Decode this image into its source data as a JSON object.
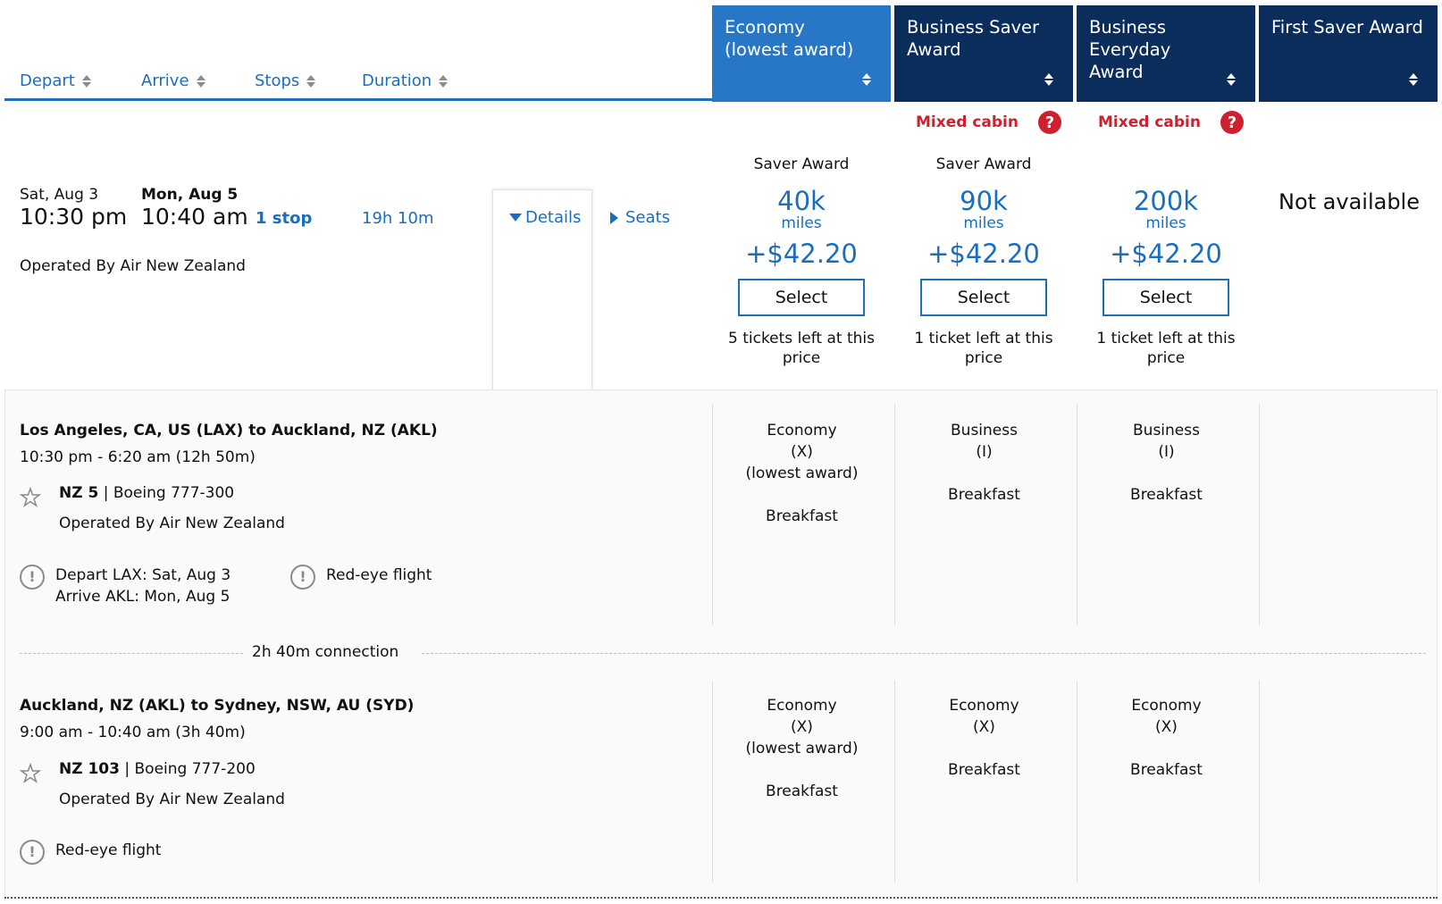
{
  "sort_header": {
    "depart": "Depart",
    "arrive": "Arrive",
    "stops": "Stops",
    "duration": "Duration"
  },
  "fare_columns": [
    {
      "label_line1": "Economy",
      "label_line2": "(lowest award)",
      "active": true
    },
    {
      "label_line1": "Business Saver",
      "label_line2": "Award",
      "active": false
    },
    {
      "label_line1": "Business Everyday",
      "label_line2": "Award",
      "active": false
    },
    {
      "label_line1": "First Saver Award",
      "label_line2": "",
      "active": false
    }
  ],
  "mixed_cabin": {
    "label": "Mixed cabin",
    "help_glyph": "?"
  },
  "flight": {
    "depart_date": "Sat, Aug 3",
    "depart_time": "10:30 pm",
    "arrive_date": "Mon, Aug 5",
    "arrive_time": "10:40 am",
    "stops": "1 stop",
    "duration": "19h 10m",
    "operated_by": "Operated By Air New Zealand",
    "details_label": "Details",
    "seats_label": "Seats"
  },
  "fares": [
    {
      "type": "Saver Award",
      "miles": "40k",
      "miles_unit": "miles",
      "price": "+$42.20",
      "button": "Select",
      "tickets": "5 tickets left at this price"
    },
    {
      "type": "Saver Award",
      "miles": "90k",
      "miles_unit": "miles",
      "price": "+$42.20",
      "button": "Select",
      "tickets": "1 ticket left at this price"
    },
    {
      "type": "",
      "miles": "200k",
      "miles_unit": "miles",
      "price": "+$42.20",
      "button": "Select",
      "tickets": "1 ticket left at this price"
    }
  ],
  "not_available": "Not available",
  "segments": [
    {
      "route": "Los Angeles, CA, US (LAX) to Auckland, NZ (AKL)",
      "times": "10:30 pm - 6:20 am (12h 50m)",
      "flight_no": "NZ 5",
      "separator": "|",
      "aircraft": "Boeing 777-300",
      "operated_by": "Operated By Air New Zealand",
      "notice_1_line1": "Depart LAX: Sat, Aug 3",
      "notice_1_line2": "Arrive AKL: Mon, Aug 5",
      "notice_2": "Red-eye flight",
      "cabins": [
        {
          "line1": "Economy",
          "line2": "(X)",
          "line3": "(lowest award)",
          "meal": "Breakfast"
        },
        {
          "line1": "Business",
          "line2": "(I)",
          "line3": "",
          "meal": "Breakfast"
        },
        {
          "line1": "Business",
          "line2": "(I)",
          "line3": "",
          "meal": "Breakfast"
        }
      ]
    },
    {
      "route": "Auckland, NZ (AKL) to Sydney, NSW, AU (SYD)",
      "times": "9:00 am - 10:40 am (3h 40m)",
      "flight_no": "NZ 103",
      "separator": "|",
      "aircraft": "Boeing 777-200",
      "operated_by": "Operated By Air New Zealand",
      "notice_1": "Red-eye flight",
      "cabins": [
        {
          "line1": "Economy",
          "line2": "(X)",
          "line3": "(lowest award)",
          "meal": "Breakfast"
        },
        {
          "line1": "Economy",
          "line2": "(X)",
          "line3": "",
          "meal": "Breakfast"
        },
        {
          "line1": "Economy",
          "line2": "(X)",
          "line3": "",
          "meal": "Breakfast"
        }
      ]
    }
  ],
  "connection": "2h 40m connection",
  "colors": {
    "accent": "#1a6ebd",
    "active_header": "#2877c6",
    "dark_header": "#0b2d5b",
    "alert": "#d0202e"
  }
}
